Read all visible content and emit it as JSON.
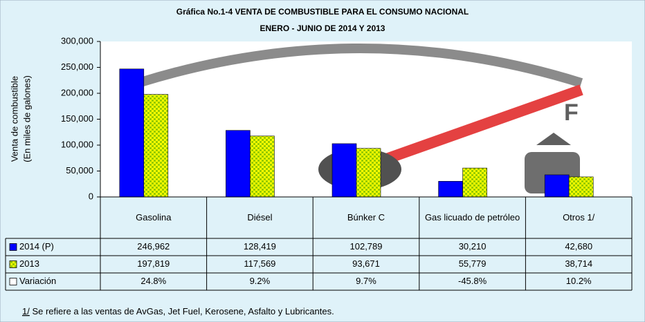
{
  "chart_data": {
    "type": "bar",
    "title": "Gráfica No.1-4  VENTA DE COMBUSTIBLE PARA EL CONSUMO NACIONAL",
    "subtitle": "ENERO - JUNIO DE 2014 Y 2013",
    "y_label": [
      "Venta de combustible",
      "(En miles de galones)"
    ],
    "categories": [
      "Gasolina",
      "Diésel",
      "Búnker C",
      "Gas licuado de petróleo",
      "Otros 1/"
    ],
    "series": [
      {
        "name": "2014 (P)",
        "color": "#0000ff",
        "values": [
          246962,
          128419,
          102789,
          30210,
          42680
        ],
        "value_labels": [
          "246,962",
          "128,419",
          "102,789",
          "30,210",
          "42,680"
        ]
      },
      {
        "name": "2013",
        "color": "#cccc00",
        "pattern": "checkered",
        "values": [
          197819,
          117569,
          93671,
          55779,
          38714
        ],
        "value_labels": [
          "197,819",
          "117,569",
          "93,671",
          "55,779",
          "38,714"
        ]
      },
      {
        "name": "Variación",
        "color": "#ffffff",
        "table_only": true,
        "values": [
          24.8,
          9.2,
          9.7,
          -45.8,
          10.2
        ],
        "value_labels": [
          "24.8%",
          "9.2%",
          "9.7%",
          "-45.8%",
          "10.2%"
        ]
      }
    ],
    "ylim": [
      0,
      300000
    ],
    "yticks": [
      {
        "value": 0,
        "label": "0"
      },
      {
        "value": 50000,
        "label": "50,000"
      },
      {
        "value": 100000,
        "label": "100,000"
      },
      {
        "value": 150000,
        "label": "150,000"
      },
      {
        "value": 200000,
        "label": "200,000"
      },
      {
        "value": 250000,
        "label": "250,000"
      },
      {
        "value": 300000,
        "label": "300,000"
      }
    ],
    "grid": false,
    "footnote_marker": "1/",
    "footnote": " Se refiere a las ventas de AvGas, Jet Fuel, Kerosene, Asfalto y Lubricantes."
  }
}
